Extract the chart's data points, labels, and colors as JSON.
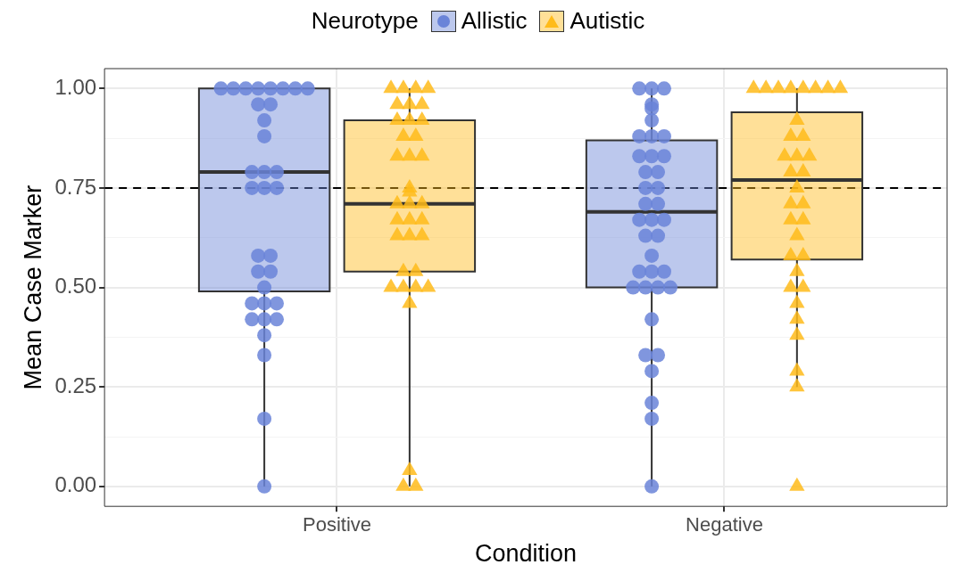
{
  "chart_data": {
    "type": "box",
    "xlabel": "Condition",
    "ylabel": "Mean Case Marker",
    "legend_title": "Neurotype",
    "legend": "top",
    "grid": true,
    "categories": [
      "Positive",
      "Negative"
    ],
    "ylim": [
      -0.05,
      1.05
    ],
    "yticks": [
      {
        "value": 0,
        "label": "0.00"
      },
      {
        "value": 0.125,
        "label": null
      },
      {
        "value": 0.25,
        "label": "0.25"
      },
      {
        "value": 0.375,
        "label": null
      },
      {
        "value": 0.5,
        "label": "0.50"
      },
      {
        "value": 0.625,
        "label": null
      },
      {
        "value": 0.75,
        "label": "0.75"
      },
      {
        "value": 0.875,
        "label": null
      },
      {
        "value": 1,
        "label": "1.00"
      }
    ],
    "ref_lines": [
      {
        "axis": "y",
        "value": 0.75,
        "line_style": "dashed",
        "color": "#000000"
      }
    ],
    "series": [
      {
        "name": "Allistic",
        "color": "#6a84d8",
        "marker": "circle",
        "boxes": [
          {
            "low": 0,
            "q1": 0.49,
            "median": 0.79,
            "q3": 1,
            "high": 1
          },
          {
            "low": 0,
            "q1": 0.5,
            "median": 0.69,
            "q3": 0.87,
            "high": 1
          }
        ]
      },
      {
        "name": "Autistic",
        "color": "#ffbb1a",
        "marker": "triangle",
        "boxes": [
          {
            "low": 0,
            "q1": 0.54,
            "median": 0.71,
            "q3": 0.92,
            "high": 1
          },
          {
            "low": 0.25,
            "q1": 0.57,
            "median": 0.77,
            "q3": 0.94,
            "high": 1
          }
        ]
      },
      {
        "type": "scatter",
        "color": "#6a84d8",
        "marker": "circle",
        "x": [
          "Positive",
          "Positive",
          "Positive",
          "Positive",
          "Positive",
          "Positive",
          "Positive",
          "Positive",
          "Positive",
          "Positive",
          "Positive",
          "Positive",
          "Positive",
          "Positive",
          "Positive",
          "Positive",
          "Positive",
          "Positive",
          "Positive",
          "Positive",
          "Positive",
          "Positive",
          "Positive",
          "Positive",
          "Positive",
          "Positive",
          "Positive",
          "Positive",
          "Positive",
          "Positive",
          "Positive",
          "Positive",
          "Positive",
          "Negative",
          "Negative",
          "Negative",
          "Negative",
          "Negative",
          "Negative",
          "Negative",
          "Negative",
          "Negative",
          "Negative",
          "Negative",
          "Negative",
          "Negative",
          "Negative",
          "Negative",
          "Negative",
          "Negative",
          "Negative",
          "Negative",
          "Negative",
          "Negative",
          "Negative",
          "Negative",
          "Negative",
          "Negative",
          "Negative",
          "Negative",
          "Negative",
          "Negative",
          "Negative",
          "Negative",
          "Negative",
          "Negative",
          "Negative",
          "Negative",
          "Negative",
          "Negative",
          "Negative"
        ],
        "values": [
          1,
          1,
          1,
          1,
          1,
          1,
          1,
          1,
          0.96,
          0.96,
          0.92,
          0.88,
          0.79,
          0.79,
          0.79,
          0.75,
          0.75,
          0.75,
          0.58,
          0.58,
          0.54,
          0.54,
          0.5,
          0.46,
          0.46,
          0.46,
          0.42,
          0.42,
          0.42,
          0.38,
          0.33,
          0.17,
          0,
          1,
          1,
          1,
          0.96,
          0.95,
          0.92,
          0.88,
          0.88,
          0.88,
          0.83,
          0.83,
          0.83,
          0.79,
          0.79,
          0.75,
          0.75,
          0.71,
          0.71,
          0.67,
          0.67,
          0.67,
          0.63,
          0.63,
          0.58,
          0.54,
          0.54,
          0.54,
          0.5,
          0.5,
          0.5,
          0.5,
          0.42,
          0.33,
          0.33,
          0.29,
          0.21,
          0.17,
          0
        ]
      },
      {
        "type": "scatter",
        "color": "#ffbb1a",
        "marker": "triangle",
        "x": [
          "Positive",
          "Positive",
          "Positive",
          "Positive",
          "Positive",
          "Positive",
          "Positive",
          "Positive",
          "Positive",
          "Positive",
          "Positive",
          "Positive",
          "Positive",
          "Positive",
          "Positive",
          "Positive",
          "Positive",
          "Positive",
          "Positive",
          "Positive",
          "Positive",
          "Positive",
          "Positive",
          "Positive",
          "Positive",
          "Positive",
          "Positive",
          "Positive",
          "Positive",
          "Positive",
          "Positive",
          "Positive",
          "Positive",
          "Positive",
          "Positive",
          "Positive",
          "Negative",
          "Negative",
          "Negative",
          "Negative",
          "Negative",
          "Negative",
          "Negative",
          "Negative",
          "Negative",
          "Negative",
          "Negative",
          "Negative",
          "Negative",
          "Negative",
          "Negative",
          "Negative",
          "Negative",
          "Negative",
          "Negative",
          "Negative",
          "Negative",
          "Negative",
          "Negative",
          "Negative",
          "Negative",
          "Negative",
          "Negative",
          "Negative",
          "Negative",
          "Negative",
          "Negative",
          "Negative",
          "Negative"
        ],
        "values": [
          1,
          1,
          1,
          1,
          0.96,
          0.96,
          0.96,
          0.92,
          0.92,
          0.92,
          0.88,
          0.88,
          0.83,
          0.83,
          0.83,
          0.75,
          0.74,
          0.71,
          0.71,
          0.71,
          0.67,
          0.67,
          0.67,
          0.63,
          0.63,
          0.63,
          0.54,
          0.54,
          0.5,
          0.5,
          0.5,
          0.5,
          0.46,
          0.04,
          0,
          0,
          1,
          1,
          1,
          1,
          1,
          1,
          1,
          1,
          0.92,
          0.88,
          0.88,
          0.83,
          0.83,
          0.83,
          0.79,
          0.79,
          0.75,
          0.71,
          0.71,
          0.67,
          0.67,
          0.63,
          0.58,
          0.58,
          0.54,
          0.5,
          0.5,
          0.46,
          0.42,
          0.38,
          0.29,
          0.25,
          0
        ]
      }
    ]
  }
}
